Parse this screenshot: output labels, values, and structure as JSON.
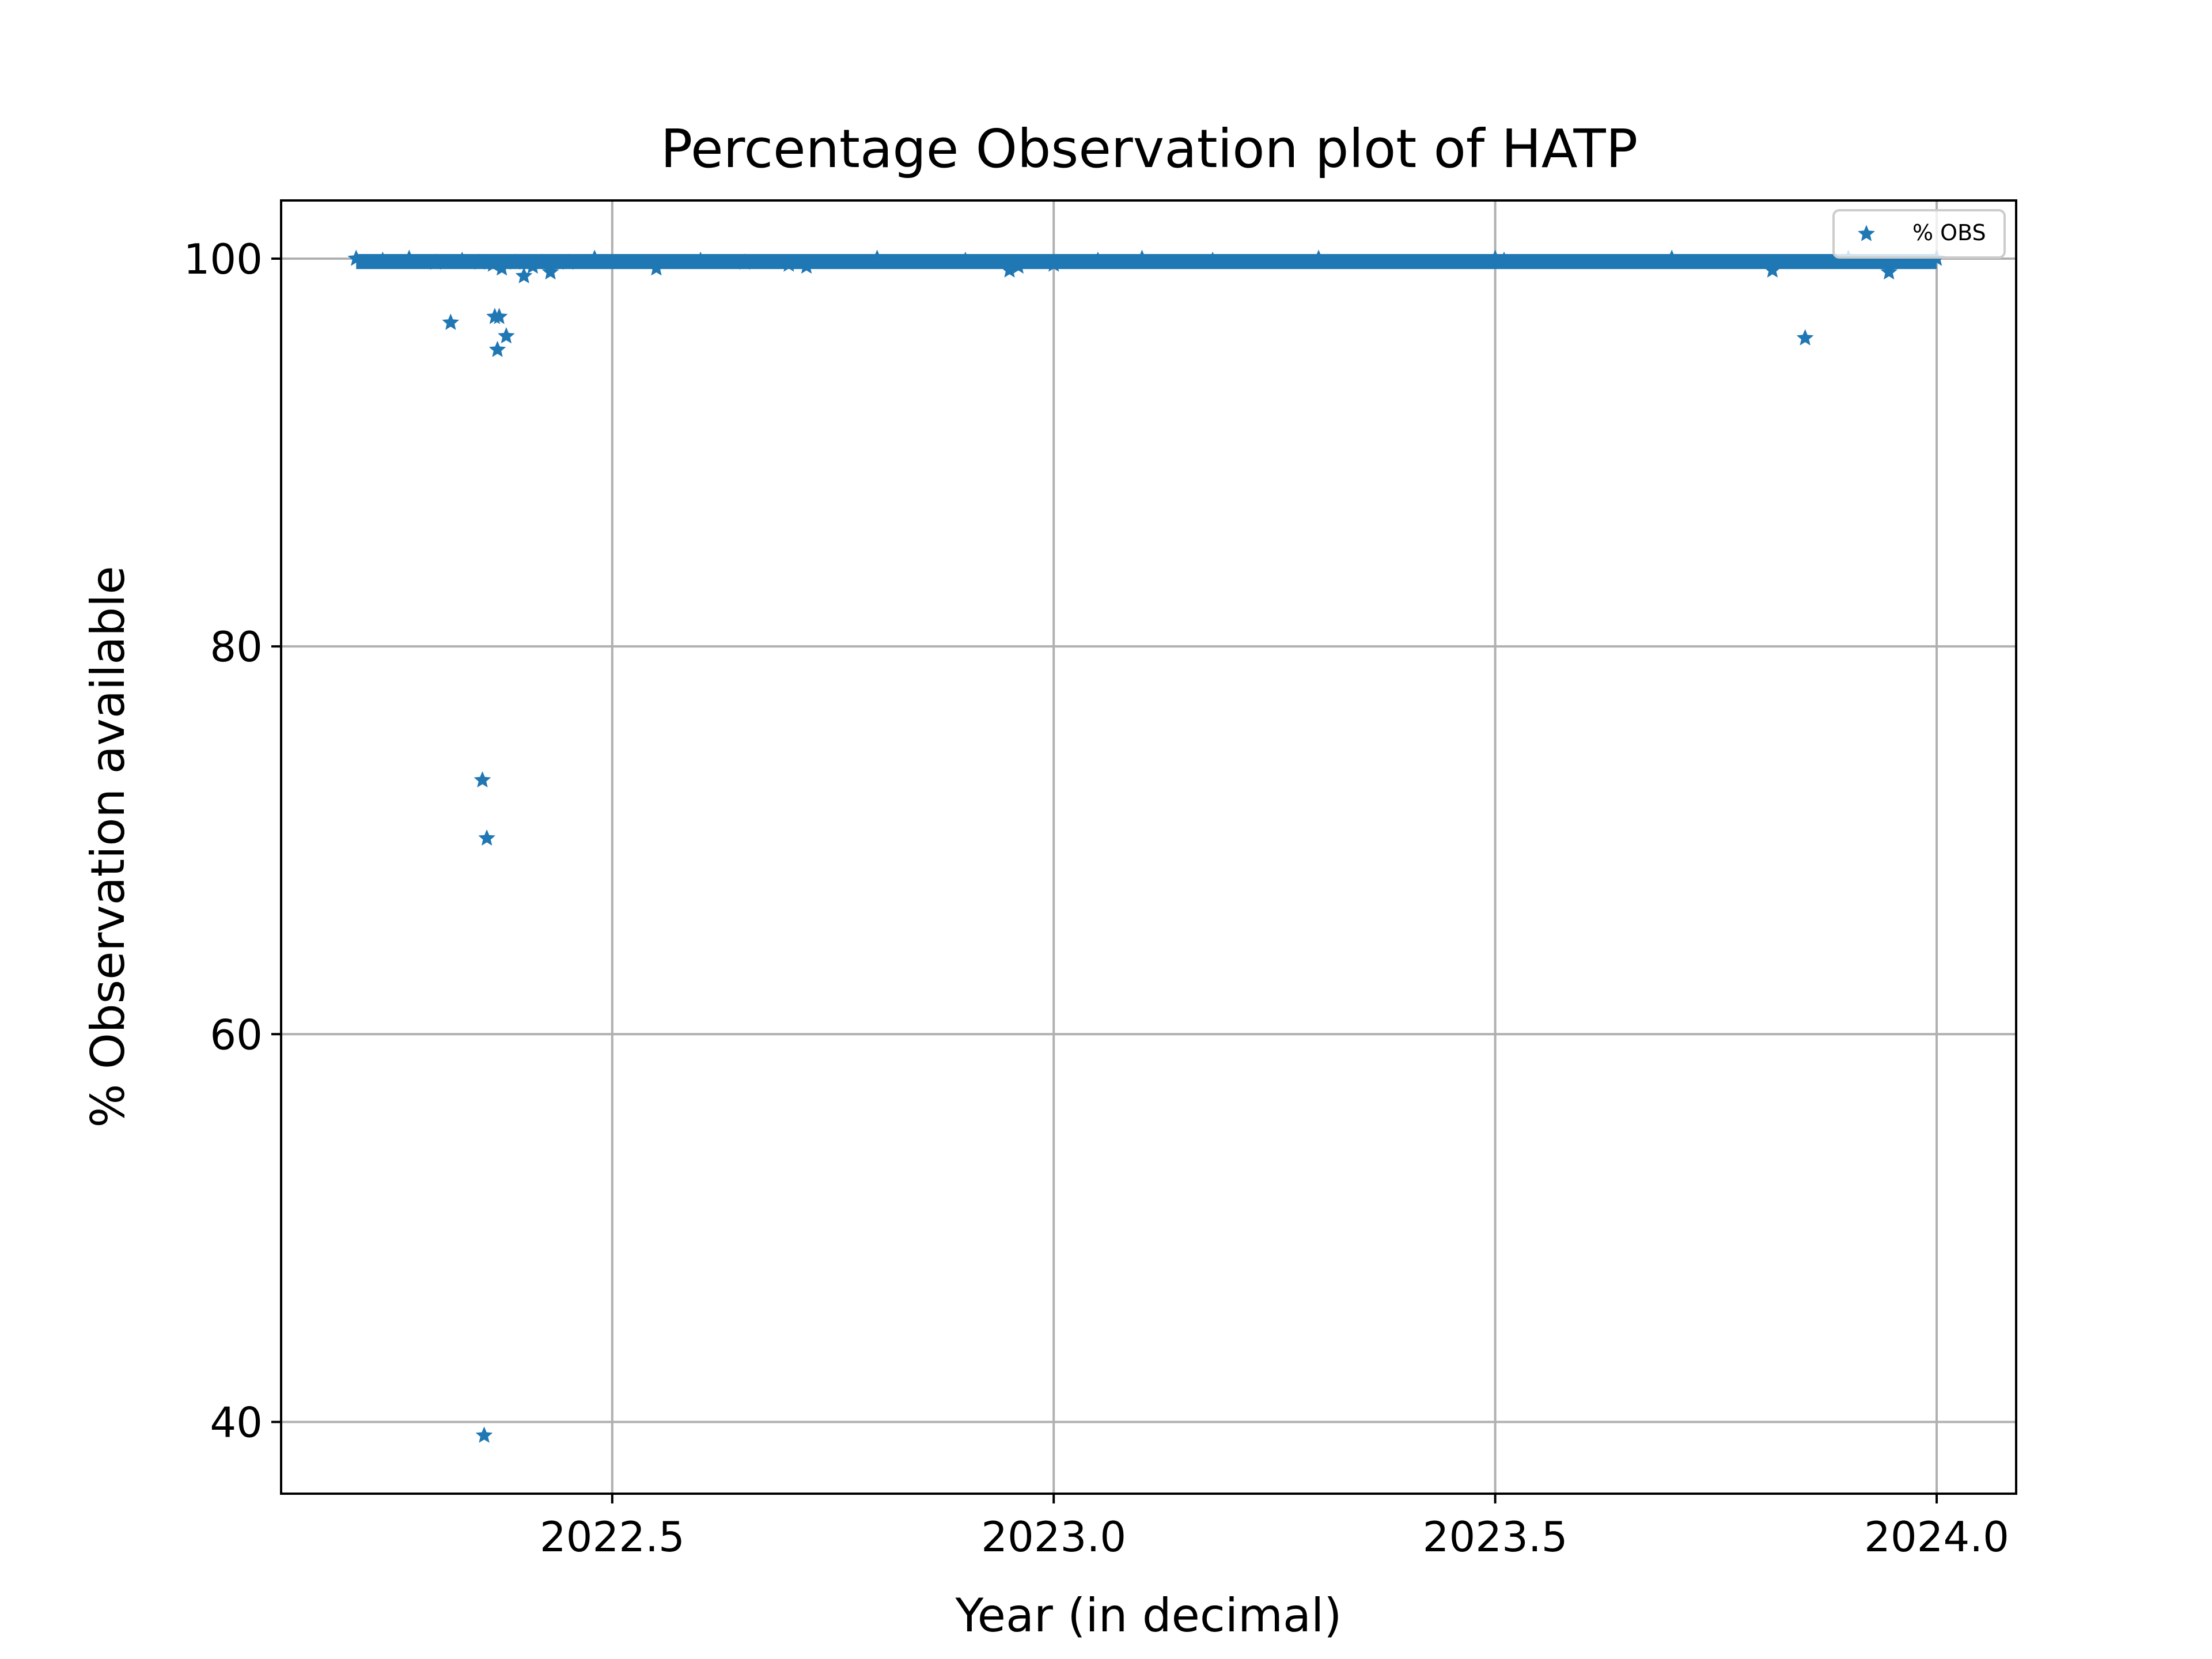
{
  "chart_data": {
    "type": "scatter",
    "title": "Percentage Observation plot of HATP",
    "xlabel": "Year (in decimal)",
    "ylabel": "% Observation available",
    "xlim": [
      2022.125,
      2024.09
    ],
    "ylim": [
      36.3,
      103.0
    ],
    "xticks": [
      2022.5,
      2023.0,
      2023.5,
      2024.0
    ],
    "xtick_labels": [
      "2022.5",
      "2023.0",
      "2023.5",
      "2024.0"
    ],
    "yticks": [
      40,
      60,
      80,
      100
    ],
    "ytick_labels": [
      "40",
      "60",
      "80",
      "100"
    ],
    "grid": true,
    "legend": {
      "placement": "top-right",
      "entries": [
        "% OBS"
      ]
    },
    "marker": "star",
    "color": "#1f77b4",
    "band": {
      "x_start": 2022.21,
      "x_end": 2024.0,
      "y_low": 99.7,
      "y_high": 100.0
    },
    "series": [
      {
        "name": "% OBS",
        "points": [
          [
            2022.21,
            100.0
          ],
          [
            2022.24,
            99.9
          ],
          [
            2022.27,
            100.0
          ],
          [
            2022.3,
            99.8
          ],
          [
            2022.317,
            96.7
          ],
          [
            2022.33,
            99.9
          ],
          [
            2022.35,
            99.8
          ],
          [
            2022.353,
            73.1
          ],
          [
            2022.355,
            39.3
          ],
          [
            2022.358,
            70.1
          ],
          [
            2022.365,
            99.7
          ],
          [
            2022.367,
            97.0
          ],
          [
            2022.37,
            95.3
          ],
          [
            2022.372,
            97.0
          ],
          [
            2022.375,
            99.5
          ],
          [
            2022.38,
            96.0
          ],
          [
            2022.39,
            99.8
          ],
          [
            2022.4,
            99.1
          ],
          [
            2022.41,
            99.6
          ],
          [
            2022.42,
            99.8
          ],
          [
            2022.43,
            99.3
          ],
          [
            2022.45,
            99.8
          ],
          [
            2022.48,
            100.0
          ],
          [
            2022.55,
            99.5
          ],
          [
            2022.6,
            99.9
          ],
          [
            2022.65,
            99.8
          ],
          [
            2022.7,
            99.7
          ],
          [
            2022.72,
            99.6
          ],
          [
            2022.8,
            100.0
          ],
          [
            2022.9,
            99.9
          ],
          [
            2022.95,
            99.4
          ],
          [
            2022.96,
            99.6
          ],
          [
            2023.0,
            99.7
          ],
          [
            2023.05,
            99.9
          ],
          [
            2023.1,
            100.0
          ],
          [
            2023.18,
            99.9
          ],
          [
            2023.3,
            100.0
          ],
          [
            2023.5,
            100.0
          ],
          [
            2023.51,
            99.9
          ],
          [
            2023.7,
            100.0
          ],
          [
            2023.814,
            99.4
          ],
          [
            2023.851,
            95.9
          ],
          [
            2023.9,
            100.0
          ],
          [
            2023.946,
            99.3
          ],
          [
            2024.0,
            100.0
          ]
        ]
      }
    ]
  }
}
